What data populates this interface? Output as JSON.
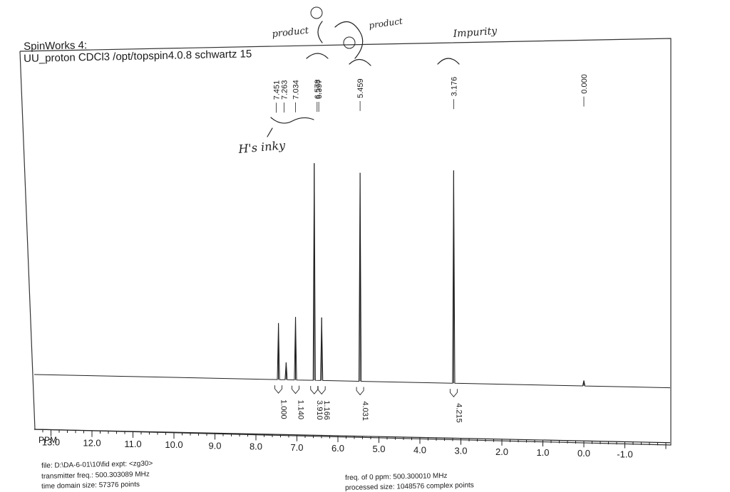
{
  "header": {
    "title": "SpinWorks 4:",
    "subtitle": "UU_proton CDCl3 /opt/topspin4.0.8 schwartz 15"
  },
  "footer": {
    "left": [
      "file: D:\\DA-6-01\\10\\fid   expt: <zg30>",
      "transmitter freq.: 500.303089 MHz",
      "time domain size: 57376 points"
    ],
    "right": [
      "freq. of 0 ppm: 500.300010 MHz",
      "processed size: 1048576 complex points"
    ]
  },
  "annotations": {
    "product_left": "product",
    "product_right": "product",
    "impurity": "Impurity",
    "inky": "H's inky"
  },
  "chart_data": {
    "type": "line",
    "title": "SpinWorks 4:",
    "xlabel": "PPM",
    "ylabel": "",
    "x_reversed": true,
    "xlim": [
      13.8,
      -1.8
    ],
    "xticks": [
      13.0,
      12.0,
      11.0,
      10.0,
      9.0,
      8.0,
      7.0,
      6.0,
      5.0,
      4.0,
      3.0,
      2.0,
      1.0,
      0.0,
      -1.0
    ],
    "xtick_labels": [
      "13.0",
      "12.0",
      "11.0",
      "10.0",
      "9.0",
      "8.0",
      "7.0",
      "6.0",
      "5.0",
      "4.0",
      "3.0",
      "2.0",
      "1.0",
      "0.0",
      "-1.0"
    ],
    "grid": false,
    "peaks": [
      {
        "ppm": 7.451,
        "label": "7.451",
        "intensity": 0.26
      },
      {
        "ppm": 7.263,
        "label": "7.263",
        "intensity": 0.08
      },
      {
        "ppm": 7.034,
        "label": "7.034",
        "intensity": 0.29
      },
      {
        "ppm": 6.578,
        "label": "6.578",
        "intensity": 1.0
      },
      {
        "ppm": 6.397,
        "label": "6.397",
        "intensity": 0.29
      },
      {
        "ppm": 5.459,
        "label": "5.459",
        "intensity": 0.96
      },
      {
        "ppm": 3.176,
        "label": "3.176",
        "intensity": 0.98
      },
      {
        "ppm": 0.0,
        "label": "0.000",
        "intensity": 0.025
      }
    ],
    "integrals": [
      {
        "ppm": 7.451,
        "value": "1.000"
      },
      {
        "ppm": 7.034,
        "value": "1.140"
      },
      {
        "ppm": 6.578,
        "value": "3.910"
      },
      {
        "ppm": 6.397,
        "value": "1.166"
      },
      {
        "ppm": 5.459,
        "value": "4.031"
      },
      {
        "ppm": 3.176,
        "value": "4.215"
      }
    ]
  }
}
